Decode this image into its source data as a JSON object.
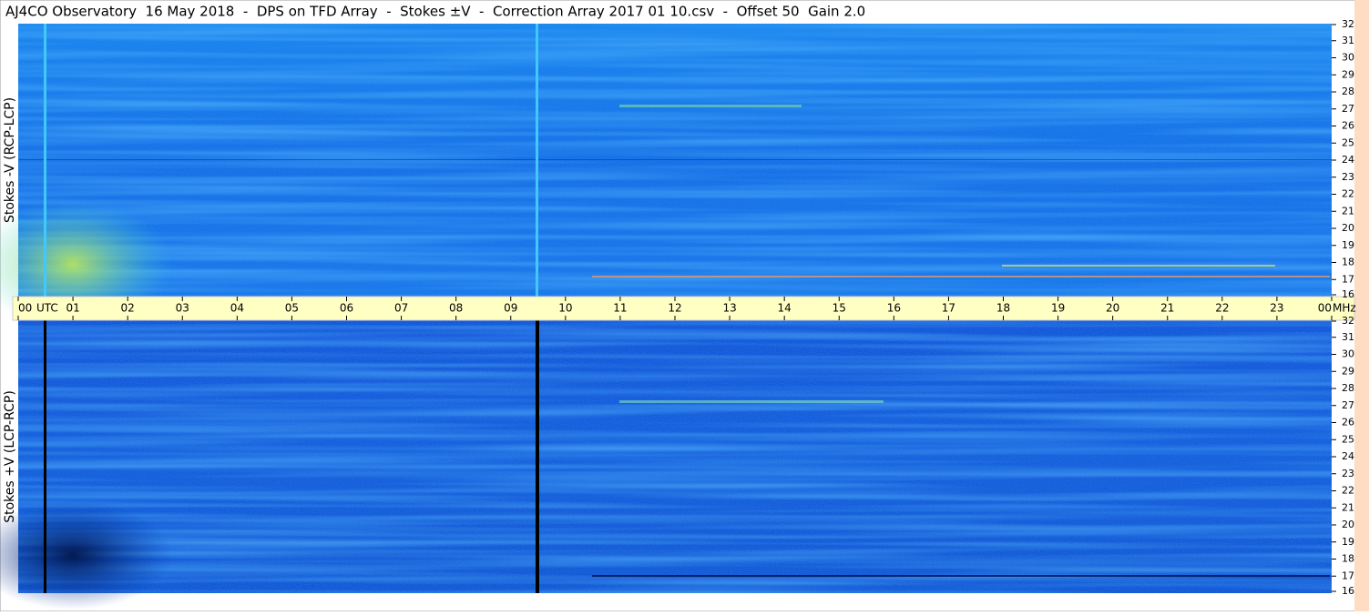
{
  "chart_data": {
    "type": "spectrogram",
    "title": "AJ4CO Observatory  16 May 2018  -  DPS on TFD Array  -  Stokes ±V  -  Correction Array 2017 01 10.csv  -  Offset 50  Gain 2.0",
    "x_unit": "UTC",
    "y_unit": "MHz",
    "xlim": [
      0,
      24
    ],
    "xticks": [
      {
        "value": 0,
        "label": "00"
      },
      {
        "value": 1,
        "label": "01"
      },
      {
        "value": 2,
        "label": "02"
      },
      {
        "value": 3,
        "label": "03"
      },
      {
        "value": 4,
        "label": "04"
      },
      {
        "value": 5,
        "label": "05"
      },
      {
        "value": 6,
        "label": "06"
      },
      {
        "value": 7,
        "label": "07"
      },
      {
        "value": 8,
        "label": "08"
      },
      {
        "value": 9,
        "label": "09"
      },
      10,
      11,
      12,
      13,
      14,
      15,
      16,
      17,
      18,
      19,
      20,
      21,
      22,
      23,
      {
        "value": 24,
        "label": "00"
      }
    ],
    "panels": [
      {
        "ylabel": "Stokes -V (RCP-LCP)",
        "ylim": [
          16,
          32
        ],
        "yticks": [
          16,
          17,
          18,
          19,
          20,
          21,
          22,
          23,
          24,
          25,
          26,
          27,
          28,
          29,
          30,
          31,
          32
        ]
      },
      {
        "ylabel": "Stokes +V (LCP-RCP)",
        "ylim": [
          16,
          32
        ],
        "yticks": [
          16,
          17,
          18,
          19,
          20,
          21,
          22,
          23,
          24,
          25,
          26,
          27,
          28,
          29,
          30,
          31,
          32
        ]
      }
    ]
  }
}
